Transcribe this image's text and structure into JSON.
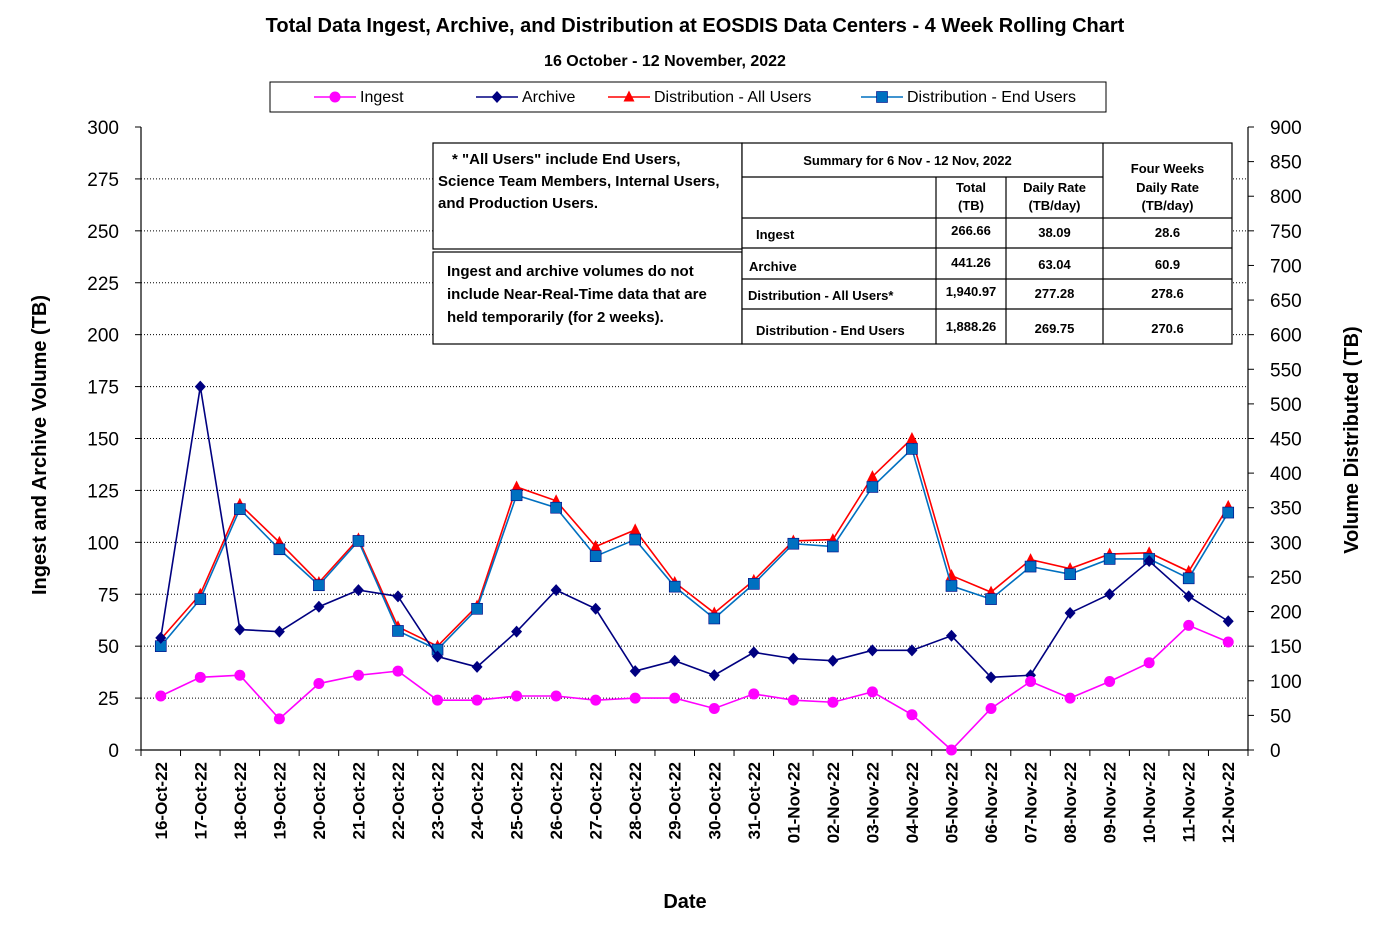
{
  "chart_data": {
    "type": "line",
    "title": "Total Data Ingest, Archive, and  Distribution at EOSDIS Data Centers - 4 Week Rolling Chart",
    "subtitle": "16  October   -  12  November,  2022",
    "xlabel": "Date",
    "ylabel_left": "Ingest and Archive Volume (TB)",
    "ylabel_right": "Volume Distributed (TB)",
    "ylim_left": [
      0,
      300
    ],
    "ylim_right": [
      0,
      900
    ],
    "yticks_left": [
      "0",
      "25",
      "50",
      "75",
      "100",
      "125",
      "150",
      "175",
      "200",
      "225",
      "250",
      "275",
      "300"
    ],
    "yticks_right": [
      "0",
      "50",
      "100",
      "150",
      "200",
      "250",
      "300",
      "350",
      "400",
      "450",
      "500",
      "550",
      "600",
      "650",
      "700",
      "750",
      "800",
      "850",
      "900"
    ],
    "grid": "horizontal dotted",
    "legend_position": "top",
    "categories": [
      "16-Oct-22",
      "17-Oct-22",
      "18-Oct-22",
      "19-Oct-22",
      "20-Oct-22",
      "21-Oct-22",
      "22-Oct-22",
      "23-Oct-22",
      "24-Oct-22",
      "25-Oct-22",
      "26-Oct-22",
      "27-Oct-22",
      "28-Oct-22",
      "29-Oct-22",
      "30-Oct-22",
      "31-Oct-22",
      "01-Nov-22",
      "02-Nov-22",
      "03-Nov-22",
      "04-Nov-22",
      "05-Nov-22",
      "06-Nov-22",
      "07-Nov-22",
      "08-Nov-22",
      "09-Nov-22",
      "10-Nov-22",
      "11-Nov-22",
      "12-Nov-22"
    ],
    "series": [
      {
        "name": "Ingest",
        "axis": "left",
        "color": "#ff00ff",
        "marker": "circle",
        "values": [
          26,
          35,
          36,
          15,
          32,
          36,
          38,
          24,
          24,
          26,
          26,
          24,
          25,
          25,
          20,
          27,
          24,
          23,
          28,
          17,
          0,
          20,
          33,
          25,
          33,
          42,
          60,
          52
        ]
      },
      {
        "name": "Archive",
        "axis": "left",
        "color": "#000080",
        "marker": "diamond",
        "values": [
          54,
          175,
          58,
          57,
          69,
          77,
          74,
          45,
          40,
          57,
          77,
          68,
          38,
          43,
          36,
          47,
          44,
          43,
          48,
          48,
          55,
          35,
          36,
          66,
          75,
          91,
          74,
          62
        ]
      },
      {
        "name": "Distribution - All Users",
        "axis": "right",
        "color": "#ff0000",
        "marker": "triangle",
        "values": [
          160,
          225,
          355,
          300,
          242,
          305,
          178,
          150,
          208,
          380,
          360,
          294,
          318,
          242,
          198,
          245,
          302,
          304,
          395,
          450,
          252,
          228,
          275,
          262,
          283,
          285,
          258,
          352
        ]
      },
      {
        "name": "Distribution - End Users",
        "axis": "right",
        "color": "#0070c0",
        "marker": "square",
        "values": [
          150,
          218,
          348,
          290,
          238,
          302,
          172,
          145,
          204,
          368,
          350,
          280,
          304,
          236,
          190,
          240,
          298,
          294,
          380,
          435,
          237,
          218,
          265,
          254,
          276,
          276,
          248,
          343
        ]
      }
    ],
    "notes": {
      "all_users": [
        "* \"All Users\" include End Users,",
        "Science Team Members,  Internal Users,",
        "and Production Users."
      ],
      "nrt": [
        "Ingest and archive volumes do not",
        "include Near-Real-Time data that are",
        "held temporarily (for 2 weeks)."
      ]
    },
    "summary_table": {
      "header_period": "Summary  for  6  Nov   -  12  Nov,  2022",
      "header_four_weeks": "Four Weeks",
      "col_total": [
        "Total",
        "(TB)"
      ],
      "col_daily": [
        "Daily Rate",
        "(TB/day)"
      ],
      "col_four": [
        "Daily Rate",
        "(TB/day)"
      ],
      "rows": [
        {
          "label": "Ingest",
          "total": "266.66",
          "daily": "38.09",
          "four_weeks": "28.6"
        },
        {
          "label": "Archive",
          "total": "441.26",
          "daily": "63.04",
          "four_weeks": "60.9"
        },
        {
          "label": "Distribution - All Users*",
          "total": "1,940.97",
          "daily": "277.28",
          "four_weeks": "278.6"
        },
        {
          "label": "Distribution - End Users",
          "total": "1,888.26",
          "daily": "269.75",
          "four_weeks": "270.6"
        }
      ]
    }
  }
}
